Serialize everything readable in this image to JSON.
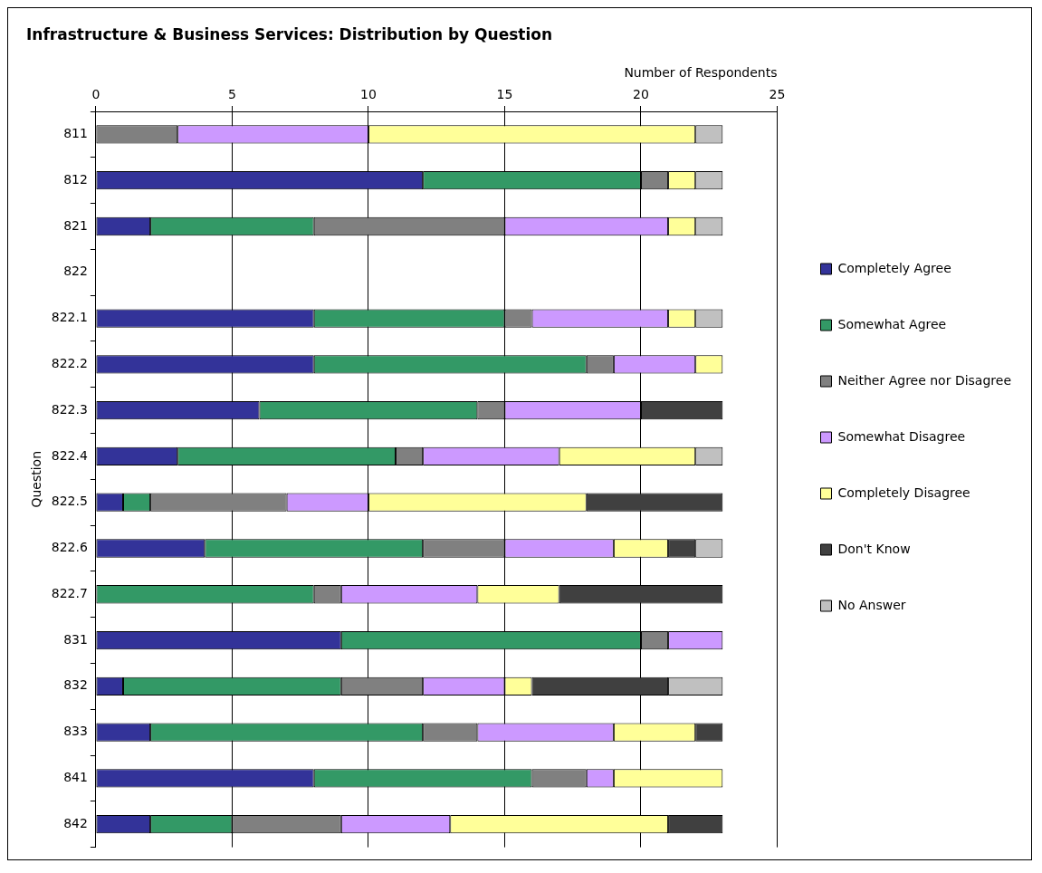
{
  "chart_data": {
    "type": "bar",
    "orientation": "horizontal",
    "stacked": true,
    "title": "Infrastructure & Business Services: Distribution by Question",
    "xlabel": "Number of Respondents",
    "ylabel": "Question",
    "categories": [
      "811",
      "812",
      "821",
      "822",
      "822.1",
      "822.2",
      "822.3",
      "822.4",
      "822.5",
      "822.6",
      "822.7",
      "831",
      "832",
      "833",
      "841",
      "842"
    ],
    "xlim": [
      0,
      25
    ],
    "xticks": [
      0,
      5,
      10,
      15,
      20,
      25
    ],
    "grid": "x",
    "legend": "right",
    "series": [
      {
        "name": "Completely Agree",
        "color": "#333399",
        "values": [
          0,
          12,
          2,
          null,
          8,
          8,
          6,
          3,
          1,
          4,
          0,
          9,
          1,
          2,
          8,
          2
        ]
      },
      {
        "name": "Somewhat Agree",
        "color": "#339966",
        "values": [
          0,
          8,
          6,
          null,
          7,
          10,
          8,
          8,
          1,
          8,
          8,
          11,
          8,
          10,
          8,
          3
        ]
      },
      {
        "name": "Neither Agree nor Disagree",
        "color": "#808080",
        "values": [
          3,
          1,
          7,
          null,
          1,
          1,
          1,
          1,
          5,
          3,
          1,
          1,
          3,
          2,
          2,
          4
        ]
      },
      {
        "name": "Somewhat Disagree",
        "color": "#cc99ff",
        "values": [
          7,
          0,
          6,
          null,
          5,
          3,
          5,
          5,
          3,
          4,
          5,
          2,
          3,
          5,
          1,
          4
        ]
      },
      {
        "name": "Completely Disagree",
        "color": "#ffff99",
        "values": [
          12,
          1,
          1,
          null,
          1,
          1,
          0,
          5,
          8,
          2,
          3,
          0,
          1,
          3,
          4,
          8
        ]
      },
      {
        "name": "Don't Know",
        "color": "#404040",
        "values": [
          0,
          0,
          0,
          null,
          0,
          0,
          3,
          0,
          5,
          1,
          6,
          0,
          5,
          1,
          0,
          2
        ]
      },
      {
        "name": "No Answer",
        "color": "#c0c0c0",
        "values": [
          1,
          1,
          1,
          null,
          1,
          0,
          0,
          1,
          0,
          1,
          0,
          0,
          2,
          0,
          0,
          0
        ]
      }
    ]
  }
}
